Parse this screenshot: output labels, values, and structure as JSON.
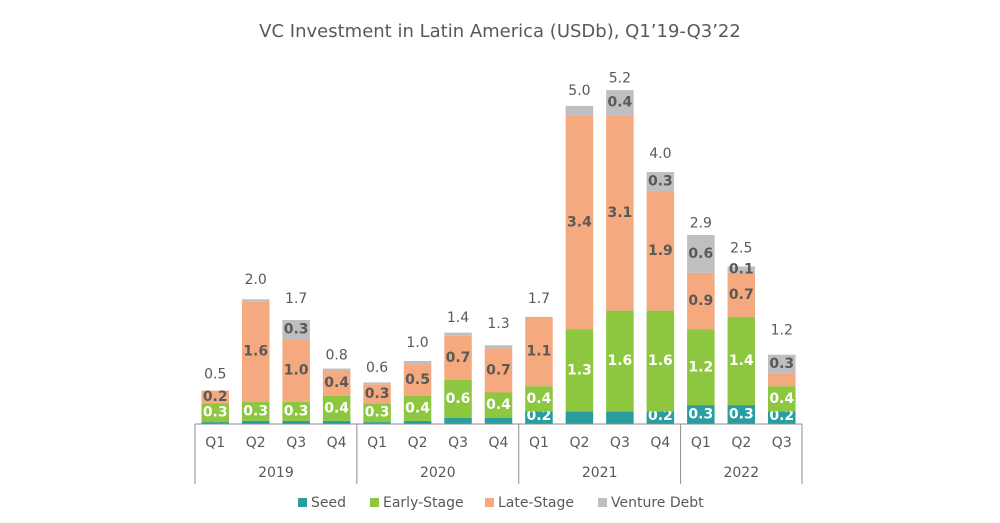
{
  "chart_data": {
    "type": "stacked_bar",
    "title": "VC Investment in Latin America (USDb), Q1’19-Q3’22",
    "groups": [
      {
        "name": "2019",
        "categories": [
          "Q1",
          "Q2",
          "Q3",
          "Q4"
        ]
      },
      {
        "name": "2020",
        "categories": [
          "Q1",
          "Q2",
          "Q3",
          "Q4"
        ]
      },
      {
        "name": "2021",
        "categories": [
          "Q1",
          "Q2",
          "Q3",
          "Q4"
        ]
      },
      {
        "name": "2022",
        "categories": [
          "Q1",
          "Q2",
          "Q3"
        ]
      }
    ],
    "series": [
      {
        "name": "Seed",
        "color": "#2a9d9f",
        "label_color": "#ffffff",
        "values": [
          0.03,
          0.05,
          0.05,
          0.05,
          0.03,
          0.05,
          0.1,
          0.1,
          0.2,
          0.2,
          0.2,
          0.2,
          0.3,
          0.3,
          0.2
        ],
        "value_labels": [
          null,
          null,
          null,
          null,
          null,
          null,
          null,
          null,
          "0.2",
          null,
          null,
          "0.2",
          "0.3",
          "0.3",
          "0.2"
        ]
      },
      {
        "name": "Early-Stage",
        "color": "#8dc63f",
        "label_color": "#ffffff",
        "values": [
          0.3,
          0.3,
          0.3,
          0.4,
          0.3,
          0.4,
          0.6,
          0.4,
          0.4,
          1.3,
          1.6,
          1.6,
          1.2,
          1.4,
          0.4
        ],
        "value_labels": [
          "0.3",
          "0.3",
          "0.3",
          "0.4",
          "0.3",
          "0.4",
          "0.6",
          "0.4",
          "0.4",
          "1.3",
          "1.6",
          "1.6",
          "1.2",
          "1.4",
          "0.4"
        ]
      },
      {
        "name": "Late-Stage",
        "color": "#f4a97f",
        "label_color": "#595959",
        "values": [
          0.2,
          1.6,
          1.0,
          0.4,
          0.3,
          0.5,
          0.7,
          0.7,
          1.1,
          3.4,
          3.1,
          1.9,
          0.9,
          0.7,
          0.2
        ],
        "value_labels": [
          "0.2",
          "1.6",
          "1.0",
          "0.4",
          "0.3",
          "0.5",
          "0.7",
          "0.7",
          "1.1",
          "3.4",
          "3.1",
          "1.9",
          "0.9",
          "0.7",
          null
        ]
      },
      {
        "name": "Venture Debt",
        "color": "#bfbfbf",
        "label_color": "#595959",
        "values": [
          0,
          0.03,
          0.3,
          0.03,
          0.03,
          0.05,
          0.05,
          0.05,
          0,
          0.15,
          0.4,
          0.3,
          0.6,
          0.1,
          0.3
        ],
        "value_labels": [
          null,
          null,
          "0.3",
          null,
          null,
          null,
          null,
          null,
          null,
          null,
          "0.4",
          "0.3",
          "0.6",
          "0.1",
          "0.3"
        ]
      }
    ],
    "totals": {
      "values": [
        0.5,
        2.0,
        1.7,
        0.8,
        0.6,
        1.0,
        1.4,
        1.3,
        1.7,
        5.0,
        5.2,
        4.0,
        2.9,
        2.5,
        1.2
      ],
      "value_labels": [
        "0.5",
        "2.0",
        "1.7",
        "0.8",
        "0.6",
        "1.0",
        "1.4",
        "1.3",
        "1.7",
        "5.0",
        "5.2",
        "4.0",
        "2.9",
        "2.5",
        "1.2"
      ]
    },
    "ylim": [
      0,
      5.5
    ]
  }
}
